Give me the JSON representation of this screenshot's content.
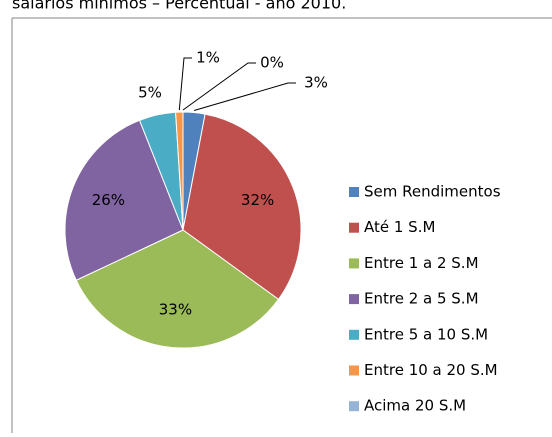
{
  "chart_data": {
    "type": "pie",
    "title": "salários mínimos – Percentual - ano 2010.",
    "categories": [
      "Sem Rendimentos",
      "Até 1 S.M",
      "Entre 1 a 2 S.M",
      "Entre 2 a 5 S.M",
      "Entre 5 a 10 S.M",
      "Entre 10 a 20 S.M",
      "Acima 20 S.M"
    ],
    "values": [
      3,
      32,
      33,
      26,
      5,
      1,
      0
    ],
    "value_labels": [
      "3%",
      "32%",
      "33%",
      "26%",
      "5%",
      "1%",
      "0%"
    ],
    "colors": [
      "#4f81bd",
      "#c0504d",
      "#9bbb59",
      "#8064a2",
      "#4bacc6",
      "#f79646",
      "#95b3d7"
    ],
    "legend": "right"
  }
}
